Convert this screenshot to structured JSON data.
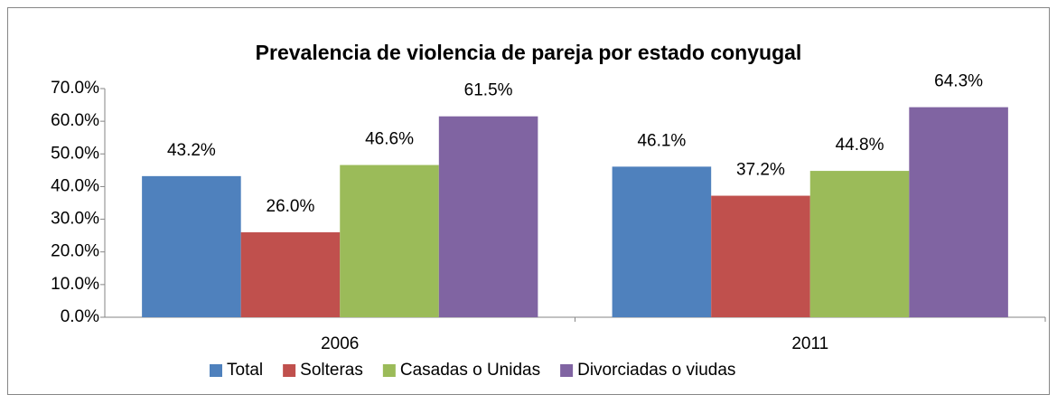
{
  "chart_data": {
    "type": "bar",
    "title": "Prevalencia de violencia de pareja por estado conyugal",
    "categories": [
      "2006",
      "2011"
    ],
    "series": [
      {
        "name": "Total",
        "color": "#4f81bd",
        "values": [
          43.2,
          46.1
        ],
        "value_labels": [
          "43.2%",
          "46.1%"
        ]
      },
      {
        "name": "Solteras",
        "color": "#c0504d",
        "values": [
          26.0,
          37.2
        ],
        "value_labels": [
          "26.0%",
          "37.2%"
        ]
      },
      {
        "name": "Casadas o Unidas",
        "color": "#9bbb59",
        "values": [
          46.6,
          44.8
        ],
        "value_labels": [
          "46.6%",
          "44.8%"
        ]
      },
      {
        "name": "Divorciadas o viudas",
        "color": "#8064a2",
        "values": [
          61.5,
          64.3
        ],
        "value_labels": [
          "61.5%",
          "64.3%"
        ]
      }
    ],
    "ylim": [
      0,
      70
    ],
    "yticks": [
      {
        "value": 0,
        "label": "0.0%"
      },
      {
        "value": 10,
        "label": "10.0%"
      },
      {
        "value": 20,
        "label": "20.0%"
      },
      {
        "value": 30,
        "label": "30.0%"
      },
      {
        "value": 40,
        "label": "40.0%"
      },
      {
        "value": 50,
        "label": "50.0%"
      },
      {
        "value": 60,
        "label": "60.0%"
      },
      {
        "value": 70,
        "label": "70.0%"
      }
    ],
    "grid": false,
    "legend": "bottom"
  }
}
